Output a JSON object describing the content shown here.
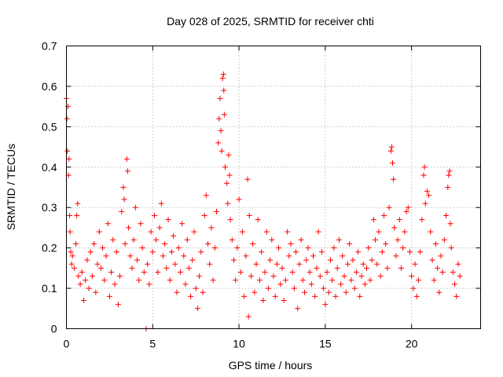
{
  "chart_data": {
    "type": "scatter",
    "title": "Day 028 of 2025, SRMTID for receiver chti",
    "xlabel": "GPS time / hours",
    "ylabel": "SRMTID / TECUs",
    "xlim": [
      0,
      24
    ],
    "ylim": [
      0,
      0.7
    ],
    "xticks": [
      0,
      5,
      10,
      15,
      20
    ],
    "yticks": [
      0,
      0.1,
      0.2,
      0.3,
      0.4,
      0.5,
      0.6,
      0.7
    ],
    "grid": true,
    "marker": "+",
    "color": "#ff0000",
    "series": [
      {
        "name": "SRMTID",
        "points": [
          [
            0.0,
            0.57
          ],
          [
            0.03,
            0.52
          ],
          [
            0.06,
            0.44
          ],
          [
            0.09,
            0.55
          ],
          [
            0.12,
            0.38
          ],
          [
            0.15,
            0.42
          ],
          [
            0.18,
            0.28
          ],
          [
            0.21,
            0.24
          ],
          [
            0.25,
            0.19
          ],
          [
            0.3,
            0.16
          ],
          [
            0.35,
            0.18
          ],
          [
            0.45,
            0.15
          ],
          [
            0.55,
            0.21
          ],
          [
            0.6,
            0.28
          ],
          [
            0.65,
            0.31
          ],
          [
            0.7,
            0.13
          ],
          [
            0.8,
            0.11
          ],
          [
            0.9,
            0.14
          ],
          [
            1.0,
            0.07
          ],
          [
            1.1,
            0.12
          ],
          [
            1.2,
            0.17
          ],
          [
            1.3,
            0.1
          ],
          [
            1.4,
            0.19
          ],
          [
            1.5,
            0.13
          ],
          [
            1.6,
            0.21
          ],
          [
            1.7,
            0.09
          ],
          [
            1.8,
            0.16
          ],
          [
            1.9,
            0.24
          ],
          [
            2.0,
            0.15
          ],
          [
            2.1,
            0.2
          ],
          [
            2.2,
            0.12
          ],
          [
            2.3,
            0.18
          ],
          [
            2.4,
            0.26
          ],
          [
            2.5,
            0.08
          ],
          [
            2.6,
            0.14
          ],
          [
            2.7,
            0.22
          ],
          [
            2.8,
            0.11
          ],
          [
            2.9,
            0.19
          ],
          [
            3.0,
            0.06
          ],
          [
            3.1,
            0.13
          ],
          [
            3.2,
            0.29
          ],
          [
            3.3,
            0.35
          ],
          [
            3.35,
            0.32
          ],
          [
            3.4,
            0.21
          ],
          [
            3.5,
            0.42
          ],
          [
            3.55,
            0.39
          ],
          [
            3.6,
            0.25
          ],
          [
            3.7,
            0.18
          ],
          [
            3.8,
            0.15
          ],
          [
            3.9,
            0.22
          ],
          [
            4.0,
            0.3
          ],
          [
            4.1,
            0.17
          ],
          [
            4.2,
            0.12
          ],
          [
            4.3,
            0.26
          ],
          [
            4.4,
            0.2
          ],
          [
            4.5,
            0.14
          ],
          [
            4.62,
            0.0
          ],
          [
            4.7,
            0.16
          ],
          [
            4.8,
            0.11
          ],
          [
            4.9,
            0.24
          ],
          [
            5.0,
            0.19
          ],
          [
            5.1,
            0.28
          ],
          [
            5.2,
            0.22
          ],
          [
            5.3,
            0.14
          ],
          [
            5.4,
            0.25
          ],
          [
            5.5,
            0.31
          ],
          [
            5.6,
            0.18
          ],
          [
            5.7,
            0.21
          ],
          [
            5.8,
            0.15
          ],
          [
            5.9,
            0.27
          ],
          [
            6.0,
            0.12
          ],
          [
            6.1,
            0.19
          ],
          [
            6.2,
            0.23
          ],
          [
            6.3,
            0.16
          ],
          [
            6.4,
            0.09
          ],
          [
            6.5,
            0.2
          ],
          [
            6.6,
            0.14
          ],
          [
            6.7,
            0.26
          ],
          [
            6.8,
            0.18
          ],
          [
            6.9,
            0.11
          ],
          [
            7.0,
            0.22
          ],
          [
            7.1,
            0.15
          ],
          [
            7.2,
            0.08
          ],
          [
            7.3,
            0.17
          ],
          [
            7.4,
            0.24
          ],
          [
            7.5,
            0.1
          ],
          [
            7.6,
            0.05
          ],
          [
            7.7,
            0.13
          ],
          [
            7.8,
            0.19
          ],
          [
            7.9,
            0.09
          ],
          [
            8.0,
            0.28
          ],
          [
            8.1,
            0.33
          ],
          [
            8.2,
            0.21
          ],
          [
            8.3,
            0.16
          ],
          [
            8.4,
            0.25
          ],
          [
            8.5,
            0.12
          ],
          [
            8.6,
            0.2
          ],
          [
            8.7,
            0.29
          ],
          [
            8.8,
            0.46
          ],
          [
            8.85,
            0.52
          ],
          [
            8.9,
            0.57
          ],
          [
            8.95,
            0.49
          ],
          [
            9.0,
            0.44
          ],
          [
            9.05,
            0.62
          ],
          [
            9.1,
            0.63
          ],
          [
            9.12,
            0.59
          ],
          [
            9.15,
            0.53
          ],
          [
            9.2,
            0.4
          ],
          [
            9.3,
            0.36
          ],
          [
            9.35,
            0.31
          ],
          [
            9.4,
            0.43
          ],
          [
            9.45,
            0.38
          ],
          [
            9.5,
            0.27
          ],
          [
            9.6,
            0.22
          ],
          [
            9.7,
            0.17
          ],
          [
            9.8,
            0.12
          ],
          [
            9.9,
            0.2
          ],
          [
            10.0,
            0.32
          ],
          [
            10.1,
            0.14
          ],
          [
            10.2,
            0.24
          ],
          [
            10.3,
            0.08
          ],
          [
            10.4,
            0.18
          ],
          [
            10.5,
            0.37
          ],
          [
            10.55,
            0.03
          ],
          [
            10.6,
            0.28
          ],
          [
            10.7,
            0.13
          ],
          [
            10.8,
            0.21
          ],
          [
            10.9,
            0.09
          ],
          [
            11.0,
            0.16
          ],
          [
            11.1,
            0.27
          ],
          [
            11.2,
            0.12
          ],
          [
            11.3,
            0.19
          ],
          [
            11.4,
            0.07
          ],
          [
            11.5,
            0.14
          ],
          [
            11.6,
            0.24
          ],
          [
            11.7,
            0.1
          ],
          [
            11.8,
            0.17
          ],
          [
            11.9,
            0.22
          ],
          [
            12.0,
            0.13
          ],
          [
            12.1,
            0.08
          ],
          [
            12.2,
            0.16
          ],
          [
            12.3,
            0.2
          ],
          [
            12.4,
            0.11
          ],
          [
            12.5,
            0.15
          ],
          [
            12.6,
            0.07
          ],
          [
            12.7,
            0.12
          ],
          [
            12.8,
            0.24
          ],
          [
            12.9,
            0.18
          ],
          [
            13.0,
            0.21
          ],
          [
            13.1,
            0.14
          ],
          [
            13.2,
            0.1
          ],
          [
            13.3,
            0.19
          ],
          [
            13.4,
            0.05
          ],
          [
            13.5,
            0.16
          ],
          [
            13.6,
            0.22
          ],
          [
            13.7,
            0.12
          ],
          [
            13.8,
            0.09
          ],
          [
            13.9,
            0.17
          ],
          [
            14.0,
            0.2
          ],
          [
            14.1,
            0.14
          ],
          [
            14.2,
            0.11
          ],
          [
            14.3,
            0.18
          ],
          [
            14.4,
            0.08
          ],
          [
            14.5,
            0.15
          ],
          [
            14.6,
            0.24
          ],
          [
            14.7,
            0.13
          ],
          [
            14.8,
            0.19
          ],
          [
            14.9,
            0.1
          ],
          [
            15.0,
            0.06
          ],
          [
            15.1,
            0.14
          ],
          [
            15.2,
            0.09
          ],
          [
            15.3,
            0.17
          ],
          [
            15.4,
            0.12
          ],
          [
            15.5,
            0.2
          ],
          [
            15.6,
            0.08
          ],
          [
            15.7,
            0.15
          ],
          [
            15.8,
            0.22
          ],
          [
            15.9,
            0.11
          ],
          [
            16.0,
            0.18
          ],
          [
            16.1,
            0.13
          ],
          [
            16.2,
            0.09
          ],
          [
            16.3,
            0.16
          ],
          [
            16.4,
            0.21
          ],
          [
            16.5,
            0.12
          ],
          [
            16.6,
            0.17
          ],
          [
            16.7,
            0.1
          ],
          [
            16.8,
            0.14
          ],
          [
            16.9,
            0.19
          ],
          [
            17.0,
            0.08
          ],
          [
            17.1,
            0.13
          ],
          [
            17.2,
            0.16
          ],
          [
            17.3,
            0.11
          ],
          [
            17.4,
            0.15
          ],
          [
            17.5,
            0.2
          ],
          [
            17.6,
            0.12
          ],
          [
            17.7,
            0.17
          ],
          [
            17.8,
            0.27
          ],
          [
            17.9,
            0.22
          ],
          [
            18.0,
            0.16
          ],
          [
            18.1,
            0.24
          ],
          [
            18.2,
            0.13
          ],
          [
            18.3,
            0.19
          ],
          [
            18.4,
            0.28
          ],
          [
            18.5,
            0.21
          ],
          [
            18.6,
            0.15
          ],
          [
            18.7,
            0.3
          ],
          [
            18.8,
            0.44
          ],
          [
            18.85,
            0.45
          ],
          [
            18.9,
            0.41
          ],
          [
            18.95,
            0.37
          ],
          [
            19.0,
            0.25
          ],
          [
            19.1,
            0.18
          ],
          [
            19.2,
            0.22
          ],
          [
            19.3,
            0.27
          ],
          [
            19.4,
            0.15
          ],
          [
            19.5,
            0.2
          ],
          [
            19.6,
            0.24
          ],
          [
            19.7,
            0.29
          ],
          [
            19.8,
            0.3
          ],
          [
            19.9,
            0.19
          ],
          [
            20.0,
            0.13
          ],
          [
            20.1,
            0.1
          ],
          [
            20.2,
            0.16
          ],
          [
            20.3,
            0.08
          ],
          [
            20.4,
            0.12
          ],
          [
            20.5,
            0.19
          ],
          [
            20.6,
            0.27
          ],
          [
            20.7,
            0.38
          ],
          [
            20.75,
            0.4
          ],
          [
            20.8,
            0.31
          ],
          [
            20.9,
            0.34
          ],
          [
            21.0,
            0.33
          ],
          [
            21.1,
            0.24
          ],
          [
            21.2,
            0.17
          ],
          [
            21.3,
            0.12
          ],
          [
            21.4,
            0.21
          ],
          [
            21.5,
            0.15
          ],
          [
            21.6,
            0.09
          ],
          [
            21.7,
            0.18
          ],
          [
            21.8,
            0.14
          ],
          [
            21.9,
            0.22
          ],
          [
            22.0,
            0.28
          ],
          [
            22.1,
            0.35
          ],
          [
            22.15,
            0.38
          ],
          [
            22.2,
            0.39
          ],
          [
            22.25,
            0.26
          ],
          [
            22.3,
            0.2
          ],
          [
            22.4,
            0.14
          ],
          [
            22.5,
            0.11
          ],
          [
            22.6,
            0.08
          ],
          [
            22.7,
            0.16
          ],
          [
            22.8,
            0.13
          ]
        ]
      }
    ]
  }
}
